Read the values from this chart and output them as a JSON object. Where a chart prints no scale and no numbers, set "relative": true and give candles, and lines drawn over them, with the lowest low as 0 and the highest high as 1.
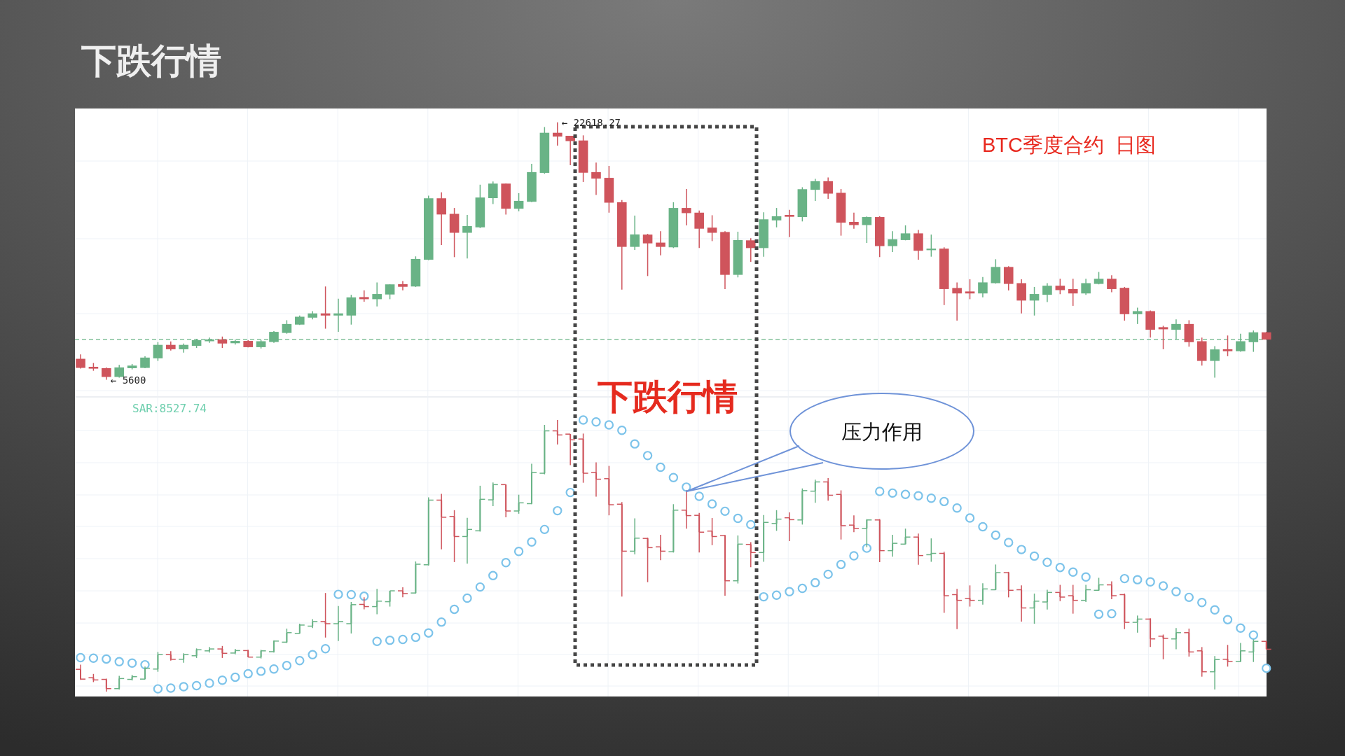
{
  "chart_data": [
    {
      "type": "candlestick",
      "title": "下跌行情",
      "grid": true,
      "categories": [
        null,
        null,
        null,
        null,
        null,
        null,
        null,
        null,
        null,
        null,
        null,
        null,
        null,
        null,
        null,
        null,
        null,
        null,
        null,
        null,
        null,
        null,
        null,
        null,
        null,
        null,
        null,
        null,
        null,
        null,
        null,
        null,
        null,
        null,
        null,
        null,
        null,
        null,
        null,
        null,
        null,
        null,
        null,
        null,
        null,
        null,
        null,
        null,
        null,
        null,
        null,
        null,
        null,
        null,
        null,
        null,
        null,
        null,
        null,
        null,
        null,
        null,
        null,
        null,
        null,
        null,
        null,
        null,
        null,
        null,
        null,
        null,
        null,
        null,
        null,
        null,
        null,
        null,
        null,
        null,
        null,
        null,
        null,
        null,
        null,
        null,
        null,
        null,
        null,
        null,
        null,
        null,
        null
      ],
      "ohlc": [
        [
          6990,
          7280,
          6340,
          6390
        ],
        [
          6460,
          6710,
          6200,
          6340
        ],
        [
          6370,
          6420,
          5600,
          5790
        ],
        [
          5790,
          6590,
          5740,
          6420
        ],
        [
          6370,
          6650,
          6290,
          6540
        ],
        [
          6390,
          7160,
          6370,
          7070
        ],
        [
          7020,
          8090,
          6850,
          7910
        ],
        [
          7910,
          8140,
          7540,
          7620
        ],
        [
          7620,
          8000,
          7400,
          7910
        ],
        [
          7850,
          8310,
          7710,
          8220
        ],
        [
          8150,
          8390,
          8050,
          8270
        ],
        [
          8270,
          8460,
          7710,
          8000
        ],
        [
          8020,
          8270,
          7930,
          8170
        ],
        [
          8170,
          8220,
          7740,
          7760
        ],
        [
          7760,
          8220,
          7670,
          8150
        ],
        [
          8100,
          8820,
          8050,
          8770
        ],
        [
          8700,
          9540,
          8650,
          9290
        ],
        [
          9250,
          9850,
          9220,
          9770
        ],
        [
          9710,
          10140,
          9590,
          9990
        ],
        [
          9990,
          11770,
          8980,
          9850
        ],
        [
          9850,
          10960,
          8770,
          9990
        ],
        [
          9850,
          11220,
          9250,
          11050
        ],
        [
          11070,
          11510,
          10760,
          10930
        ],
        [
          10930,
          12040,
          10450,
          11270
        ],
        [
          11240,
          11910,
          10930,
          11910
        ],
        [
          11920,
          12130,
          11510,
          11750
        ],
        [
          11770,
          13760,
          11740,
          13590
        ],
        [
          13540,
          17770,
          13500,
          17600
        ],
        [
          17600,
          17990,
          14510,
          16530
        ],
        [
          16570,
          16960,
          13710,
          15320
        ],
        [
          15320,
          16500,
          13620,
          15760
        ],
        [
          15680,
          18500,
          15630,
          17650
        ],
        [
          17610,
          18710,
          17220,
          18570
        ],
        [
          18570,
          18570,
          16520,
          16910
        ],
        [
          16910,
          17940,
          16740,
          17430
        ],
        [
          17370,
          19880,
          17340,
          19330
        ],
        [
          19280,
          22310,
          19220,
          21930
        ],
        [
          21930,
          22618.27,
          21080,
          21680
        ],
        [
          21730,
          21730,
          19790,
          21380
        ],
        [
          21420,
          21760,
          18680,
          19290
        ],
        [
          19330,
          19960,
          17820,
          18900
        ],
        [
          18950,
          19740,
          16650,
          17310
        ],
        [
          17340,
          17480,
          11560,
          14390
        ],
        [
          14390,
          16450,
          14190,
          15210
        ],
        [
          15200,
          15250,
          12460,
          14620
        ],
        [
          14670,
          15420,
          13830,
          14390
        ],
        [
          14360,
          17340,
          14310,
          16960
        ],
        [
          16960,
          18210,
          15810,
          16620
        ],
        [
          16650,
          16790,
          14310,
          15590
        ],
        [
          15660,
          16480,
          14770,
          15320
        ],
        [
          15370,
          15420,
          11600,
          12540
        ],
        [
          12540,
          15390,
          12370,
          14840
        ],
        [
          14820,
          14960,
          13400,
          14310
        ],
        [
          14310,
          16670,
          13740,
          16210
        ],
        [
          16140,
          16960,
          15680,
          16410
        ],
        [
          16500,
          16840,
          15030,
          16380
        ],
        [
          16360,
          18330,
          16070,
          18200
        ],
        [
          18160,
          18880,
          17430,
          18730
        ],
        [
          18730,
          18980,
          17560,
          17910
        ],
        [
          17960,
          18210,
          15130,
          15990
        ],
        [
          16040,
          16650,
          15590,
          15830
        ],
        [
          15830,
          16400,
          14650,
          16360
        ],
        [
          16360,
          16410,
          13710,
          14440
        ],
        [
          14440,
          15420,
          14050,
          14890
        ],
        [
          14840,
          15810,
          14820,
          15280
        ],
        [
          15280,
          15510,
          13540,
          14130
        ],
        [
          14170,
          15200,
          13740,
          14270
        ],
        [
          14270,
          14360,
          10540,
          11600
        ],
        [
          11670,
          12040,
          9510,
          11310
        ],
        [
          11440,
          12250,
          10930,
          11310
        ],
        [
          11310,
          12390,
          11050,
          12040
        ],
        [
          11990,
          13570,
          11960,
          13060
        ],
        [
          13060,
          13110,
          11510,
          11940
        ],
        [
          11990,
          12250,
          9990,
          10840
        ],
        [
          10840,
          11740,
          9850,
          11270
        ],
        [
          11220,
          11990,
          10740,
          11820
        ],
        [
          11820,
          12280,
          11260,
          11530
        ],
        [
          11600,
          12280,
          10490,
          11310
        ],
        [
          11310,
          12280,
          11220,
          11990
        ],
        [
          11940,
          12730,
          11910,
          12280
        ],
        [
          12280,
          12510,
          11390,
          11600
        ],
        [
          11680,
          11740,
          9510,
          9940
        ],
        [
          9940,
          10370,
          9290,
          10140
        ],
        [
          10140,
          10190,
          8390,
          8910
        ],
        [
          9080,
          9170,
          7620,
          8940
        ],
        [
          8910,
          9590,
          8260,
          9290
        ],
        [
          9290,
          9540,
          7790,
          8090
        ],
        [
          8150,
          8390,
          6540,
          6850
        ],
        [
          6850,
          7830,
          5740,
          7610
        ],
        [
          7620,
          8530,
          7160,
          7490
        ],
        [
          7490,
          8650,
          7450,
          8150
        ],
        [
          8090,
          8860,
          7450,
          8740
        ],
        [
          8740,
          8770,
          8260,
          8260
        ]
      ],
      "ref_lines": [
        {
          "axis": "y",
          "value": 8270,
          "color": "#6bb487",
          "line_style": "dashed"
        }
      ],
      "annotations": [
        "BTC季度合约  日图",
        "← 22618.27",
        "← 5600",
        "下跌行情"
      ]
    },
    {
      "type": "candlestick",
      "grid": true,
      "relative": true,
      "categories": [
        null,
        null,
        null,
        null,
        null,
        null,
        null,
        null,
        null,
        null,
        null,
        null,
        null,
        null,
        null,
        null,
        null,
        null,
        null,
        null,
        null,
        null,
        null,
        null,
        null,
        null,
        null,
        null,
        null,
        null,
        null,
        null,
        null,
        null,
        null,
        null,
        null,
        null,
        null,
        null,
        null,
        null,
        null,
        null,
        null,
        null,
        null,
        null,
        null,
        null,
        null,
        null,
        null,
        null,
        null,
        null,
        null,
        null,
        null,
        null,
        null,
        null,
        null,
        null,
        null,
        null,
        null,
        null,
        null,
        null,
        null,
        null,
        null,
        null,
        null,
        null,
        null,
        null,
        null,
        null,
        null,
        null,
        null,
        null,
        null,
        null,
        null,
        null,
        null,
        null,
        null,
        null,
        null
      ],
      "ohlc": [
        [
          0.082,
          0.099,
          0.043,
          0.046
        ],
        [
          0.051,
          0.065,
          0.035,
          0.043
        ],
        [
          0.045,
          0.048,
          0,
          0.011
        ],
        [
          0.011,
          0.058,
          0.008,
          0.048
        ],
        [
          0.045,
          0.062,
          0.041,
          0.055
        ],
        [
          0.046,
          0.092,
          0.045,
          0.086
        ],
        [
          0.083,
          0.146,
          0.073,
          0.136
        ],
        [
          0.136,
          0.149,
          0.114,
          0.119
        ],
        [
          0.119,
          0.141,
          0.106,
          0.136
        ],
        [
          0.132,
          0.159,
          0.124,
          0.154
        ],
        [
          0.15,
          0.164,
          0.144,
          0.157
        ],
        [
          0.157,
          0.168,
          0.124,
          0.141
        ],
        [
          0.142,
          0.157,
          0.137,
          0.151
        ],
        [
          0.151,
          0.154,
          0.126,
          0.127
        ],
        [
          0.127,
          0.154,
          0.122,
          0.15
        ],
        [
          0.147,
          0.189,
          0.144,
          0.186
        ],
        [
          0.182,
          0.232,
          0.179,
          0.217
        ],
        [
          0.214,
          0.25,
          0.213,
          0.245
        ],
        [
          0.241,
          0.267,
          0.234,
          0.258
        ],
        [
          0.258,
          0.363,
          0.199,
          0.25
        ],
        [
          0.25,
          0.315,
          0.186,
          0.258
        ],
        [
          0.25,
          0.33,
          0.214,
          0.32
        ],
        [
          0.321,
          0.347,
          0.303,
          0.313
        ],
        [
          0.313,
          0.378,
          0.285,
          0.333
        ],
        [
          0.331,
          0.371,
          0.313,
          0.371
        ],
        [
          0.371,
          0.384,
          0.347,
          0.361
        ],
        [
          0.363,
          0.479,
          0.361,
          0.469
        ],
        [
          0.467,
          0.715,
          0.464,
          0.705
        ],
        [
          0.705,
          0.728,
          0.524,
          0.642
        ],
        [
          0.645,
          0.668,
          0.477,
          0.571
        ],
        [
          0.571,
          0.64,
          0.471,
          0.597
        ],
        [
          0.592,
          0.758,
          0.589,
          0.708
        ],
        [
          0.706,
          0.77,
          0.683,
          0.762
        ],
        [
          0.762,
          0.762,
          0.642,
          0.665
        ],
        [
          0.665,
          0.725,
          0.655,
          0.695
        ],
        [
          0.692,
          0.839,
          0.69,
          0.807
        ],
        [
          0.804,
          0.982,
          0.8,
          0.96
        ],
        [
          0.96,
          1,
          0.91,
          0.945
        ],
        [
          0.948,
          0.948,
          0.834,
          0.927
        ],
        [
          0.93,
          0.95,
          0.769,
          0.804
        ],
        [
          0.807,
          0.844,
          0.718,
          0.782
        ],
        [
          0.784,
          0.831,
          0.649,
          0.688
        ],
        [
          0.69,
          0.698,
          0.35,
          0.517
        ],
        [
          0.517,
          0.638,
          0.505,
          0.565
        ],
        [
          0.564,
          0.567,
          0.403,
          0.53
        ],
        [
          0.533,
          0.577,
          0.484,
          0.517
        ],
        [
          0.515,
          0.69,
          0.512,
          0.668
        ],
        [
          0.668,
          0.741,
          0.6,
          0.648
        ],
        [
          0.649,
          0.658,
          0.512,
          0.587
        ],
        [
          0.591,
          0.639,
          0.539,
          0.571
        ],
        [
          0.574,
          0.577,
          0.353,
          0.408
        ],
        [
          0.408,
          0.575,
          0.398,
          0.543
        ],
        [
          0.542,
          0.55,
          0.458,
          0.512
        ],
        [
          0.512,
          0.65,
          0.478,
          0.623
        ],
        [
          0.619,
          0.668,
          0.592,
          0.635
        ],
        [
          0.64,
          0.66,
          0.554,
          0.633
        ],
        [
          0.632,
          0.748,
          0.615,
          0.74
        ],
        [
          0.738,
          0.78,
          0.695,
          0.772
        ],
        [
          0.772,
          0.786,
          0.703,
          0.723
        ],
        [
          0.726,
          0.741,
          0.56,
          0.611
        ],
        [
          0.613,
          0.649,
          0.587,
          0.601
        ],
        [
          0.601,
          0.635,
          0.532,
          0.632
        ],
        [
          0.632,
          0.635,
          0.477,
          0.519
        ],
        [
          0.519,
          0.577,
          0.497,
          0.546
        ],
        [
          0.543,
          0.6,
          0.542,
          0.569
        ],
        [
          0.569,
          0.582,
          0.467,
          0.501
        ],
        [
          0.504,
          0.564,
          0.478,
          0.509
        ],
        [
          0.509,
          0.515,
          0.29,
          0.353
        ],
        [
          0.357,
          0.378,
          0.23,
          0.336
        ],
        [
          0.343,
          0.391,
          0.313,
          0.336
        ],
        [
          0.336,
          0.399,
          0.32,
          0.378
        ],
        [
          0.375,
          0.468,
          0.374,
          0.438
        ],
        [
          0.438,
          0.441,
          0.347,
          0.373
        ],
        [
          0.375,
          0.391,
          0.258,
          0.308
        ],
        [
          0.308,
          0.361,
          0.25,
          0.333
        ],
        [
          0.33,
          0.375,
          0.302,
          0.365
        ],
        [
          0.365,
          0.393,
          0.333,
          0.348
        ],
        [
          0.353,
          0.393,
          0.287,
          0.336
        ],
        [
          0.336,
          0.393,
          0.33,
          0.375
        ],
        [
          0.373,
          0.419,
          0.371,
          0.393
        ],
        [
          0.393,
          0.406,
          0.34,
          0.353
        ],
        [
          0.357,
          0.361,
          0.23,
          0.255
        ],
        [
          0.255,
          0.28,
          0.217,
          0.267
        ],
        [
          0.267,
          0.27,
          0.164,
          0.194
        ],
        [
          0.204,
          0.21,
          0.119,
          0.196
        ],
        [
          0.194,
          0.234,
          0.156,
          0.217
        ],
        [
          0.217,
          0.232,
          0.129,
          0.146
        ],
        [
          0.15,
          0.164,
          0.055,
          0.073
        ],
        [
          0.073,
          0.131,
          0.008,
          0.118
        ],
        [
          0.119,
          0.172,
          0.092,
          0.111
        ],
        [
          0.111,
          0.179,
          0.109,
          0.15
        ],
        [
          0.146,
          0.192,
          0.109,
          0.185
        ],
        [
          0.185,
          0.186,
          0.156,
          0.156
        ]
      ],
      "series": [
        {
          "type": "scatter",
          "marker": "circle",
          "color": "#7cc3ea",
          "values": [
            0.125,
            0.123,
            0.12,
            0.11,
            0.105,
            0.099,
            0.01,
            0.013,
            0.018,
            0.022,
            0.031,
            0.042,
            0.053,
            0.066,
            0.075,
            0.083,
            0.096,
            0.114,
            0.136,
            0.158,
            0.358,
            0.357,
            0.351,
            0.185,
            0.189,
            0.192,
            0.2,
            0.216,
            0.256,
            0.303,
            0.344,
            0.385,
            0.427,
            0.475,
            0.516,
            0.551,
            0.597,
            0.666,
            0.733,
            1,
            0.993,
            0.982,
            0.962,
            0.912,
            0.869,
            0.826,
            0.788,
            0.753,
            0.719,
            0.691,
            0.664,
            0.638,
            0.615,
            0.349,
            0.355,
            0.368,
            0.38,
            0.401,
            0.432,
            0.468,
            0.5,
            0.528,
            0.737,
            0.731,
            0.726,
            0.721,
            0.712,
            0.7,
            0.676,
            0.639,
            0.607,
            0.576,
            0.549,
            0.523,
            0.499,
            0.476,
            0.457,
            0.44,
            0.422,
            0.285,
            0.287,
            0.416,
            0.412,
            0.404,
            0.389,
            0.368,
            0.347,
            0.328,
            0.301,
            0.265,
            0.234,
            0.208,
            0.086
          ]
        }
      ],
      "annotations": [
        "SAR:8527.74",
        "压力作用"
      ]
    }
  ]
}
